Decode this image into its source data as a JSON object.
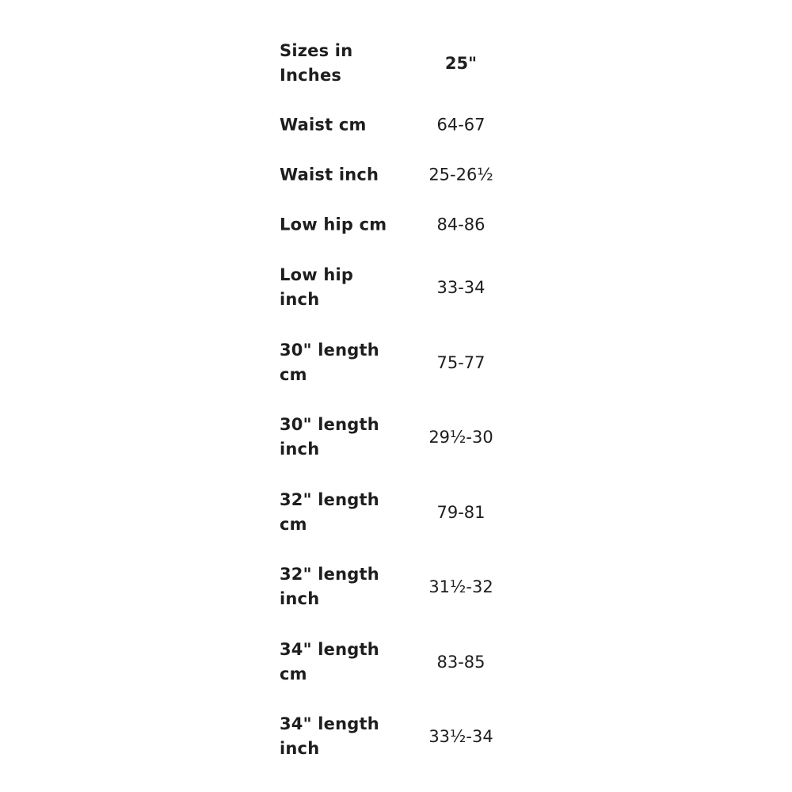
{
  "size_table": {
    "header": {
      "label": "Sizes in Inches",
      "value": "25\""
    },
    "rows": [
      {
        "label": "Waist cm",
        "value": "64-67"
      },
      {
        "label": "Waist inch",
        "value": "25-26½"
      },
      {
        "label": "Low hip cm",
        "value": "84-86"
      },
      {
        "label": "Low hip inch",
        "value": "33-34"
      },
      {
        "label": "30\" length cm",
        "value": "75-77"
      },
      {
        "label": "30\" length inch",
        "value": "29½-30"
      },
      {
        "label": "32\" length cm",
        "value": "79-81"
      },
      {
        "label": "32\" length inch",
        "value": "31½-32"
      },
      {
        "label": "34\" length cm",
        "value": "83-85"
      },
      {
        "label": "34\" length inch",
        "value": "33½-34"
      }
    ]
  }
}
